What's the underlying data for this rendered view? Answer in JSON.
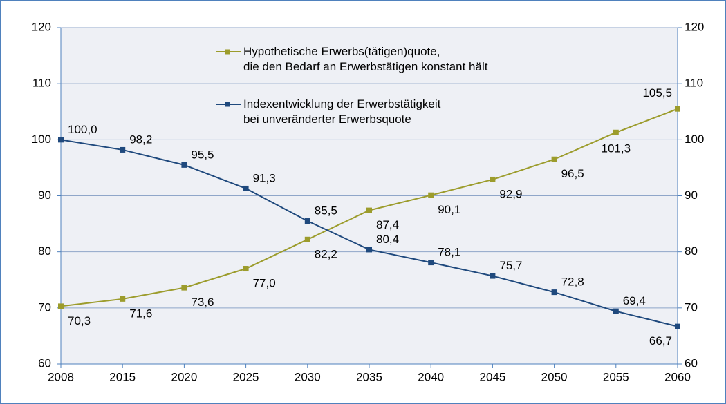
{
  "chart_data": {
    "type": "line",
    "categories": [
      "2008",
      "2015",
      "2020",
      "2025",
      "2030",
      "2035",
      "2040",
      "2045",
      "2050",
      "2055",
      "2060"
    ],
    "series": [
      {
        "name": "Hypothetische Erwerbs(tätigen)quote,\ndie den Bedarf an Erwerbstätigen konstant hält",
        "color": "#9c9c2c",
        "values": [
          70.3,
          71.6,
          73.6,
          77.0,
          82.2,
          87.4,
          90.1,
          92.9,
          96.5,
          101.3,
          105.5
        ],
        "value_labels": [
          "70,3",
          "71,6",
          "73,6",
          "77,0",
          "82,2",
          "87,4",
          "90,1",
          "92,9",
          "96,5",
          "101,3",
          "105,5"
        ]
      },
      {
        "name": "Indexentwicklung der Erwerbstätigkeit\nbei unveränderter Erwerbsquote",
        "color": "#1f497d",
        "values": [
          100.0,
          98.2,
          95.5,
          91.3,
          85.5,
          80.4,
          78.1,
          75.7,
          72.8,
          69.4,
          66.7
        ],
        "value_labels": [
          "100,0",
          "98,2",
          "95,5",
          "91,3",
          "85,5",
          "80,4",
          "78,1",
          "75,7",
          "72,8",
          "69,4",
          "66,7"
        ]
      }
    ],
    "ylim": [
      60,
      120
    ],
    "yticks": [
      60,
      70,
      80,
      90,
      100,
      110,
      120
    ],
    "y2lim": [
      60,
      120
    ],
    "y2ticks": [
      60,
      70,
      80,
      90,
      100,
      110,
      120
    ],
    "grid": true
  }
}
